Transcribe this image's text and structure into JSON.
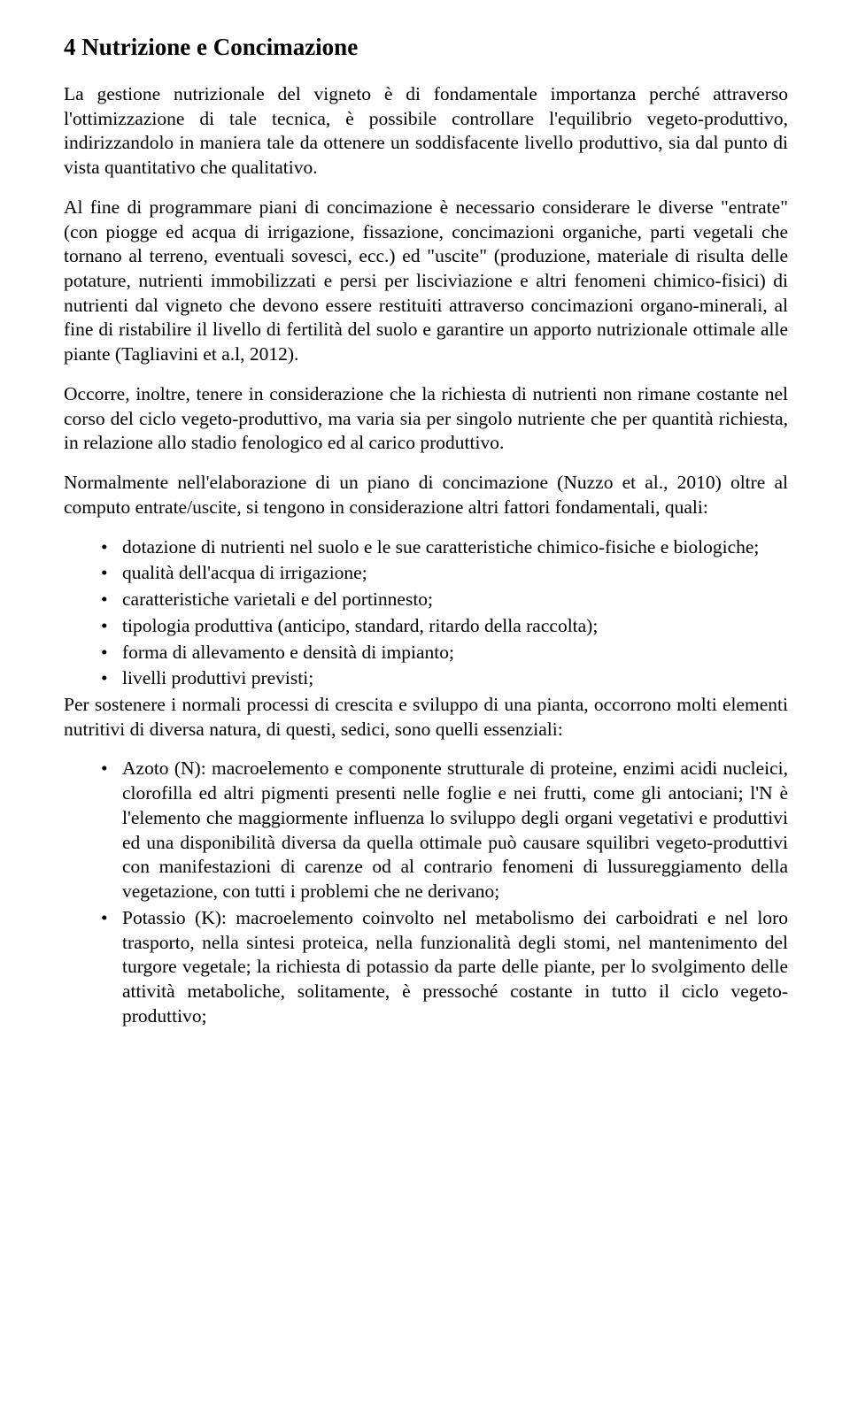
{
  "title": "4 Nutrizione e Concimazione",
  "p1": "La gestione nutrizionale del vigneto è di fondamentale importanza perché attraverso l'ottimizzazione di tale tecnica, è possibile controllare l'equilibrio vegeto-produttivo, indirizzandolo in maniera tale da ottenere un soddisfacente livello produttivo, sia dal punto di vista quantitativo che qualitativo.",
  "p2": "Al fine di programmare piani di concimazione è necessario considerare le diverse \"entrate\" (con piogge ed acqua di irrigazione, fissazione, concimazioni organiche, parti vegetali che tornano al terreno, eventuali sovesci, ecc.) ed \"uscite\" (produzione, materiale di risulta delle potature, nutrienti immobilizzati e persi per lisciviazione e altri fenomeni chimico-fisici) di nutrienti dal vigneto che devono essere restituiti attraverso concimazioni organo-minerali, al fine di ristabilire il livello di fertilità del suolo e garantire un apporto nutrizionale ottimale alle piante (Tagliavini et a.l, 2012).",
  "p3": "Occorre, inoltre, tenere in considerazione che la richiesta di nutrienti non rimane costante nel corso del ciclo vegeto-produttivo, ma varia sia per singolo nutriente che per quantità richiesta, in relazione allo stadio fenologico ed al carico produttivo.",
  "p4": "Normalmente nell'elaborazione di un piano di concimazione (Nuzzo et al., 2010) oltre al computo entrate/uscite, si tengono in considerazione altri fattori fondamentali, quali:",
  "list1": [
    "dotazione di nutrienti nel suolo e le sue caratteristiche chimico-fisiche e biologiche;",
    "qualità dell'acqua di irrigazione;",
    "caratteristiche varietali e del portinnesto;",
    "tipologia produttiva (anticipo, standard, ritardo della raccolta);",
    "forma di allevamento e densità di impianto;",
    "livelli produttivi previsti;"
  ],
  "p5": "Per sostenere i normali processi di crescita e sviluppo di una pianta, occorrono molti elementi nutritivi di diversa natura, di questi, sedici, sono quelli essenziali:",
  "list2": [
    "Azoto (N): macroelemento e componente strutturale di proteine, enzimi acidi nucleici, clorofilla ed altri pigmenti presenti nelle foglie e nei frutti, come gli antociani; l'N è l'elemento che maggiormente influenza lo sviluppo degli organi vegetativi e produttivi ed una disponibilità diversa da quella ottimale può causare squilibri vegeto-produttivi con manifestazioni di carenze od al contrario fenomeni di lussureggiamento della vegetazione, con tutti i problemi che ne derivano;",
    "Potassio (K): macroelemento coinvolto nel metabolismo dei carboidrati e nel loro trasporto, nella sintesi proteica, nella funzionalità degli stomi, nel mantenimento del turgore vegetale; la richiesta di potassio da parte delle piante, per lo svolgimento delle attività metaboliche, solitamente, è pressoché costante in tutto il ciclo vegeto-produttivo;"
  ]
}
